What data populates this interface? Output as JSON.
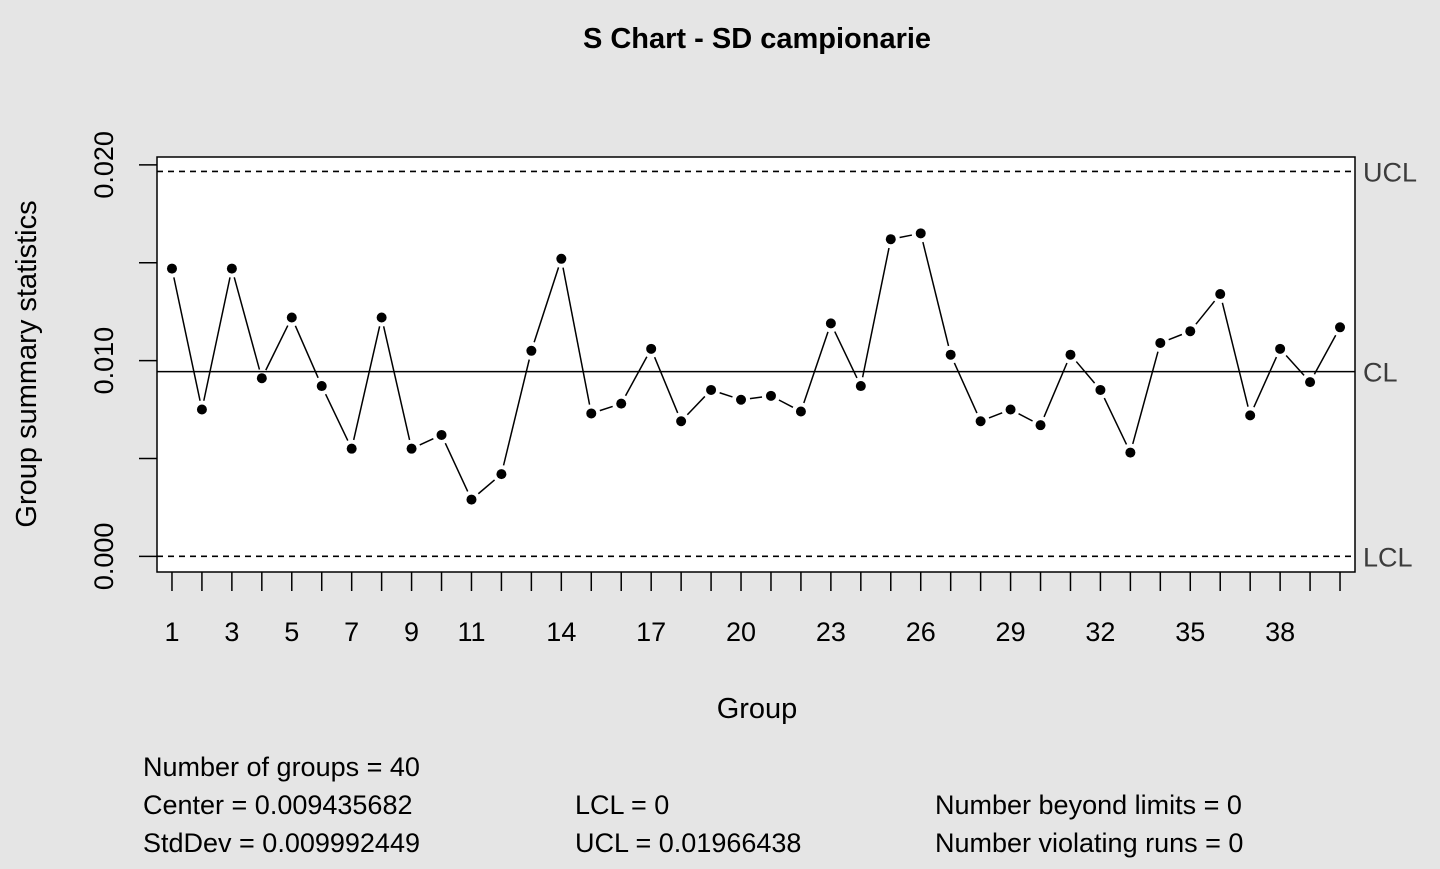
{
  "chart_data": {
    "type": "line",
    "title": "S Chart - SD campionarie",
    "xlabel": "Group",
    "ylabel": "Group summary statistics",
    "x": [
      1,
      2,
      3,
      4,
      5,
      6,
      7,
      8,
      9,
      10,
      11,
      12,
      13,
      14,
      15,
      16,
      17,
      18,
      19,
      20,
      21,
      22,
      23,
      24,
      25,
      26,
      27,
      28,
      29,
      30,
      31,
      32,
      33,
      34,
      35,
      36,
      37,
      38,
      39,
      40
    ],
    "series": [
      {
        "values": [
          0.0147,
          0.0075,
          0.0147,
          0.0091,
          0.0122,
          0.0087,
          0.0055,
          0.0122,
          0.0055,
          0.0062,
          0.0029,
          0.0042,
          0.0105,
          0.0152,
          0.0073,
          0.0078,
          0.0106,
          0.0069,
          0.0085,
          0.008,
          0.0082,
          0.0074,
          0.0119,
          0.0087,
          0.0162,
          0.0165,
          0.0103,
          0.0069,
          0.0075,
          0.0067,
          0.0103,
          0.0085,
          0.0053,
          0.0109,
          0.0115,
          0.0134,
          0.0072,
          0.0106,
          0.0089,
          0.0117
        ]
      }
    ],
    "xlim": [
      0.5,
      40.5
    ],
    "ylim": [
      -0.0008,
      0.0204
    ],
    "x_tick_labels": [
      "1",
      "3",
      "5",
      "7",
      "9",
      "11",
      "14",
      "17",
      "20",
      "23",
      "26",
      "29",
      "32",
      "35",
      "38"
    ],
    "y_tick_labels": [
      "0.000",
      "0.010",
      "0.020"
    ],
    "y_ticks": [
      0,
      0.005,
      0.01,
      0.015,
      0.02
    ],
    "lines": {
      "ucl": {
        "value": 0.01966438,
        "label": "UCL",
        "style": "dashed"
      },
      "cl": {
        "value": 0.009435682,
        "label": "CL",
        "style": "solid"
      },
      "lcl": {
        "value": 0,
        "label": "LCL",
        "style": "dashed"
      }
    },
    "stats": {
      "groups": "Number of groups = 40",
      "center": "Center = 0.009435682",
      "stddev": "StdDev = 0.009992449",
      "lcl": "LCL = 0",
      "ucl": "UCL = 0.01966438",
      "beyond": "Number beyond limits = 0",
      "violating": "Number violating runs = 0"
    },
    "colors": {
      "background": "#e5e5e5",
      "plot_background": "#ffffff",
      "points": "#000000",
      "limit_labels": "#3c3c3c"
    }
  }
}
